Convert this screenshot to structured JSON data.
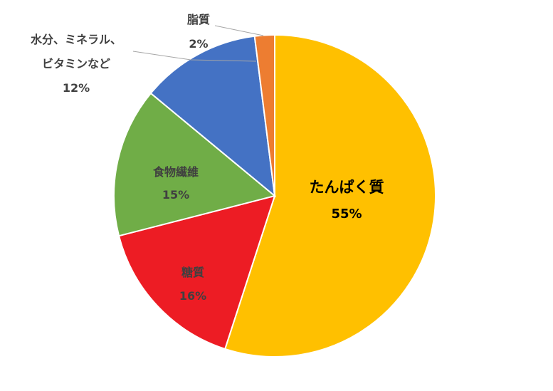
{
  "chart_data": {
    "type": "pie",
    "slices": [
      {
        "name": "たんぱく質",
        "value": 55,
        "value_label": "55%",
        "color": "#FFC000"
      },
      {
        "name": "糖質",
        "value": 16,
        "value_label": "16%",
        "color": "#ED1C24"
      },
      {
        "name": "食物繊維",
        "value": 15,
        "value_label": "15%",
        "color": "#70AD47"
      },
      {
        "name_lines": [
          "水分、ミネラル、",
          "ビタミンなど"
        ],
        "value": 12,
        "value_label": "12%",
        "color": "#4472C4"
      },
      {
        "name": "脂質",
        "value": 2,
        "value_label": "2%",
        "color": "#ED7D31"
      }
    ],
    "start_angle": "12 o'clock",
    "direction": "clockwise",
    "legend": "none",
    "data_labels": "category name and percentage"
  }
}
